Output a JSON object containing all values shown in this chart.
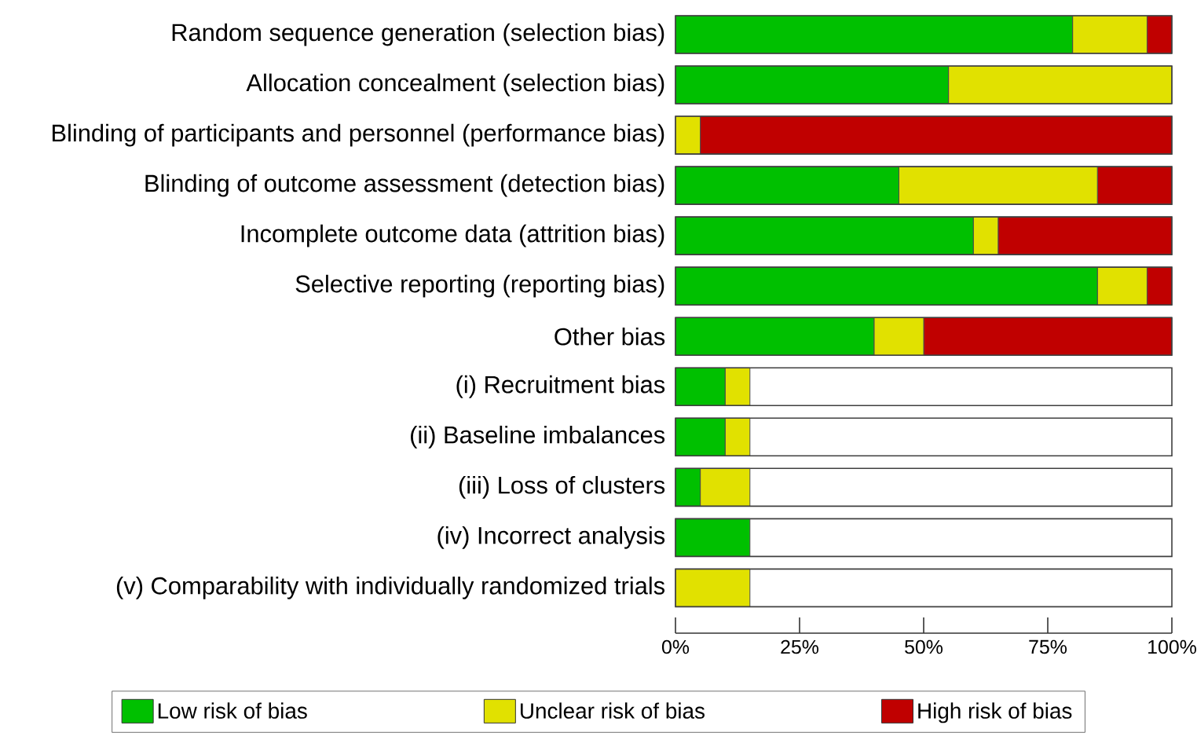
{
  "chart_data": {
    "type": "bar",
    "orientation": "horizontal",
    "stacked": true,
    "categories": [
      "Random sequence generation (selection bias)",
      "Allocation concealment (selection bias)",
      "Blinding of participants and personnel (performance bias)",
      "Blinding of outcome assessment (detection bias)",
      "Incomplete outcome data (attrition bias)",
      "Selective reporting (reporting bias)",
      "Other bias",
      "(i) Recruitment bias",
      "(ii) Baseline imbalances",
      "(iii) Loss of clusters",
      "(iv) Incorrect analysis",
      "(v) Comparability with individually randomized trials"
    ],
    "series": [
      {
        "name": "Low risk of bias",
        "color": "#00c000",
        "values": [
          80,
          55,
          0,
          45,
          60,
          85,
          40,
          10,
          10,
          5,
          15,
          0
        ]
      },
      {
        "name": "Unclear risk of bias",
        "color": "#e1e100",
        "values": [
          15,
          45,
          5,
          40,
          5,
          10,
          10,
          5,
          5,
          10,
          0,
          15
        ]
      },
      {
        "name": "High risk of bias",
        "color": "#c00000",
        "values": [
          5,
          0,
          95,
          15,
          35,
          5,
          50,
          0,
          0,
          0,
          0,
          0
        ]
      }
    ],
    "xlim": [
      0,
      100
    ],
    "xticks": [
      {
        "value": 0,
        "label": "0%"
      },
      {
        "value": 25,
        "label": "25%"
      },
      {
        "value": 50,
        "label": "50%"
      },
      {
        "value": 75,
        "label": "75%"
      },
      {
        "value": 100,
        "label": "100%"
      }
    ],
    "legend": "bottom"
  }
}
